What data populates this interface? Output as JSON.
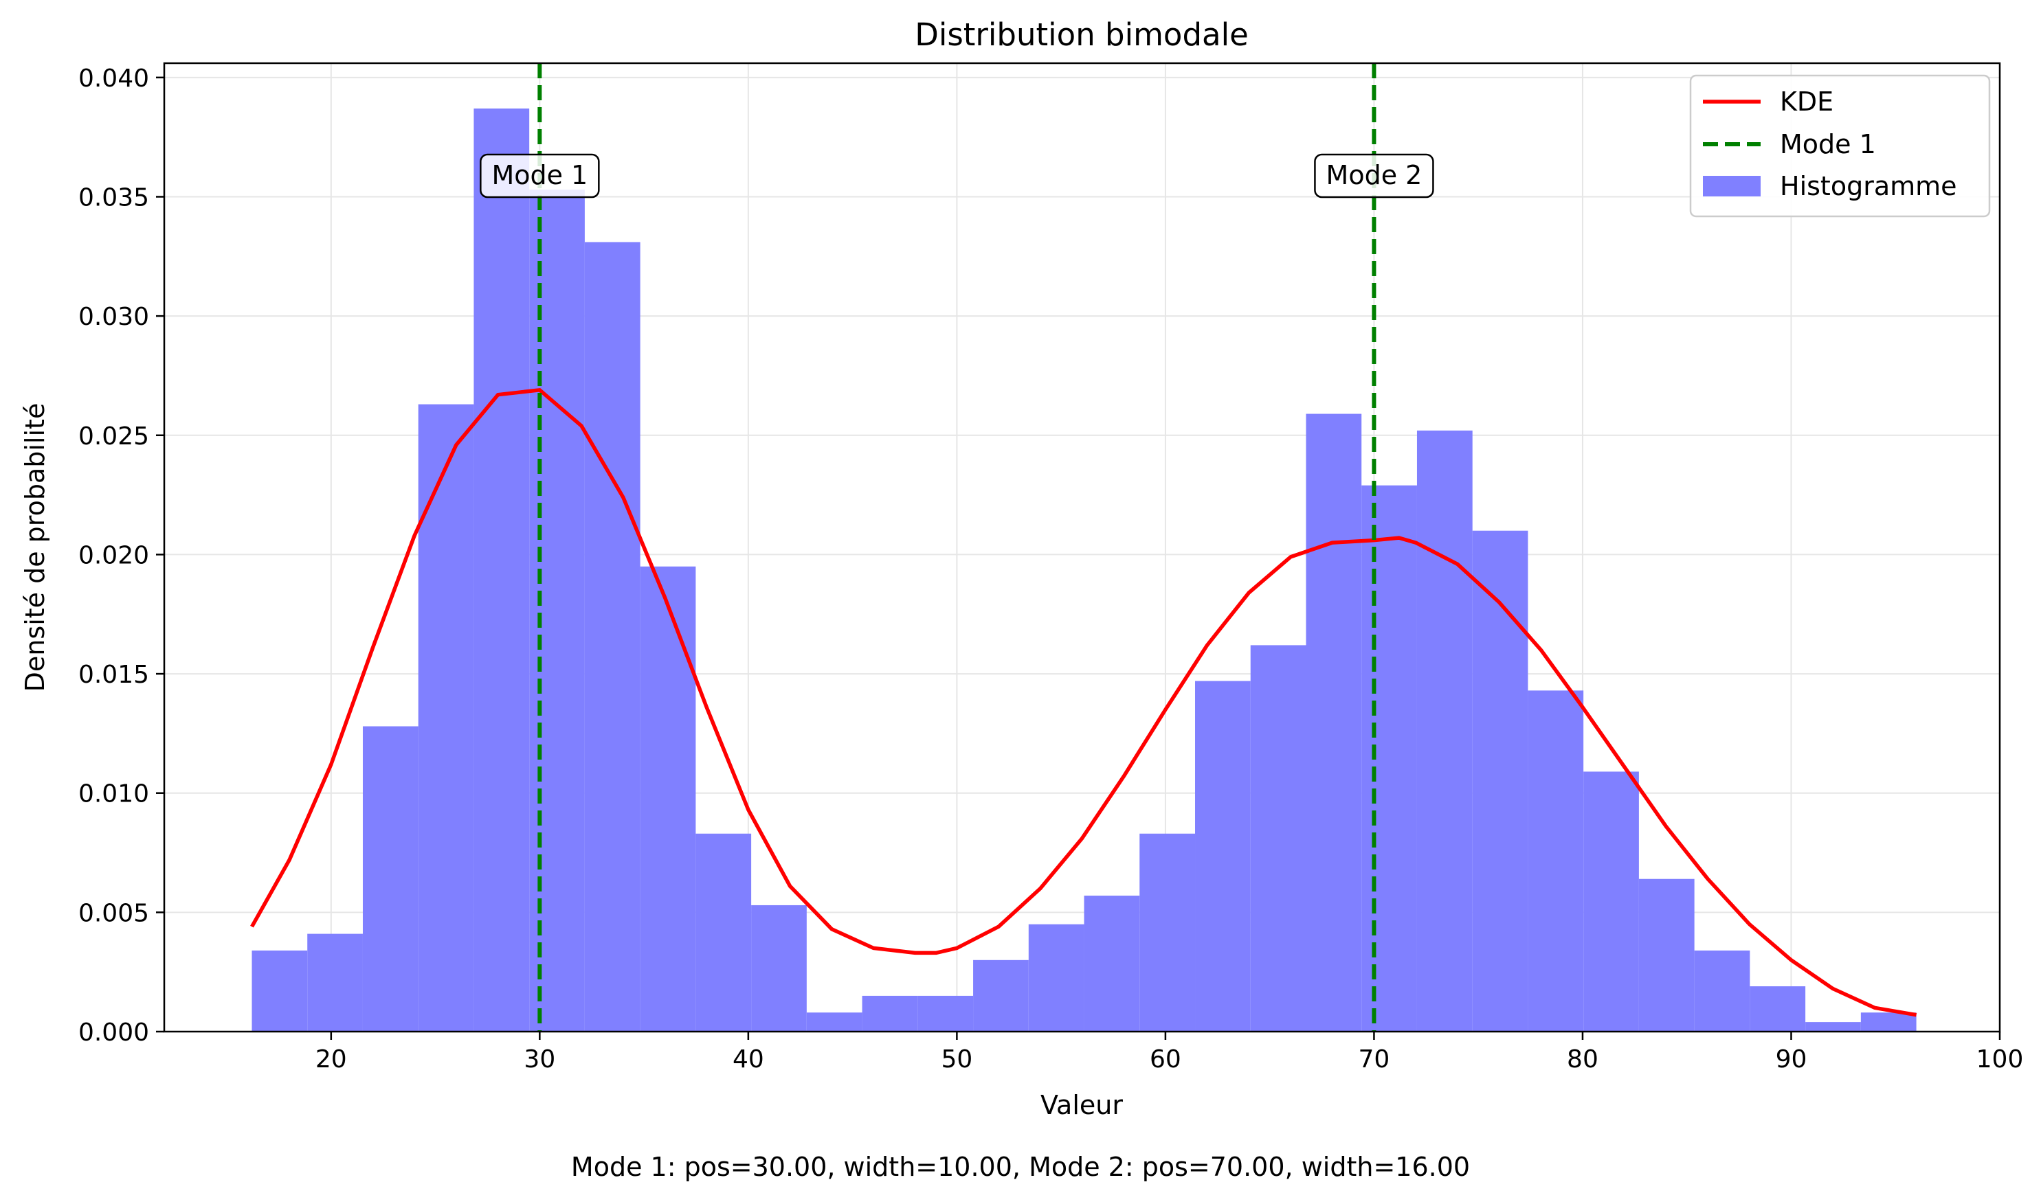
{
  "chart_data": {
    "type": "bar",
    "title": "Distribution bimodale",
    "xlabel": "Valeur",
    "ylabel": "Densité de probabilité",
    "xlim": [
      12,
      100
    ],
    "ylim": [
      0,
      0.0406
    ],
    "grid": true,
    "legend_position": "top-right",
    "xticks": [
      20,
      30,
      40,
      50,
      60,
      70,
      80,
      90,
      100
    ],
    "yticks": [
      0.0,
      0.005,
      0.01,
      0.015,
      0.02,
      0.025,
      0.03,
      0.035,
      0.04
    ],
    "ytick_labels": [
      "0.000",
      "0.005",
      "0.010",
      "0.015",
      "0.020",
      "0.025",
      "0.030",
      "0.035",
      "0.040"
    ],
    "histogram": {
      "name": "Histogramme",
      "color": "#8080ff",
      "bin_edges": [
        16.2,
        18.86,
        21.52,
        24.18,
        26.84,
        29.5,
        32.16,
        34.82,
        37.48,
        40.14,
        42.8,
        45.46,
        48.12,
        50.78,
        53.44,
        56.1,
        58.76,
        61.42,
        64.08,
        66.74,
        69.4,
        72.06,
        74.72,
        77.38,
        80.04,
        82.7,
        85.36,
        88.02,
        90.68,
        93.34,
        96.0
      ],
      "values": [
        0.0034,
        0.0041,
        0.0128,
        0.0263,
        0.0387,
        0.0353,
        0.0331,
        0.0195,
        0.0083,
        0.0053,
        0.0008,
        0.0015,
        0.0015,
        0.003,
        0.0045,
        0.0057,
        0.0083,
        0.0147,
        0.0162,
        0.0259,
        0.0229,
        0.0252,
        0.021,
        0.0143,
        0.0109,
        0.0064,
        0.0034,
        0.0019,
        0.0004,
        0.0008
      ]
    },
    "kde": {
      "name": "KDE",
      "color": "#ff0000",
      "x": [
        16.2,
        18,
        20,
        22,
        24,
        26,
        28,
        30,
        32,
        34,
        36,
        38,
        40,
        42,
        44,
        46,
        48,
        49,
        50,
        52,
        54,
        56,
        58,
        60,
        62,
        64,
        66,
        68,
        70,
        71.2,
        72,
        74,
        76,
        78,
        80,
        82,
        84,
        86,
        88,
        90,
        92,
        94,
        96
      ],
      "y": [
        0.0044,
        0.0072,
        0.0112,
        0.0161,
        0.0208,
        0.0246,
        0.0267,
        0.0269,
        0.0254,
        0.0224,
        0.0182,
        0.0136,
        0.0093,
        0.0061,
        0.0043,
        0.0035,
        0.0033,
        0.0033,
        0.0035,
        0.0044,
        0.006,
        0.0081,
        0.0107,
        0.0135,
        0.0162,
        0.0184,
        0.0199,
        0.0205,
        0.0206,
        0.0207,
        0.0205,
        0.0196,
        0.018,
        0.016,
        0.0136,
        0.0111,
        0.0086,
        0.0064,
        0.0045,
        0.003,
        0.0018,
        0.001,
        0.0007
      ]
    },
    "modes": [
      {
        "name": "Mode 1",
        "label": "Mode 1",
        "x": 30,
        "color": "#008000"
      },
      {
        "name": "",
        "label": "Mode 2",
        "x": 70,
        "color": "#008000"
      }
    ],
    "legend": [
      "KDE",
      "Mode 1",
      "Histogramme"
    ],
    "footnote": "Mode 1: pos=30.00, width=10.00, Mode 2: pos=70.00, width=16.00"
  }
}
